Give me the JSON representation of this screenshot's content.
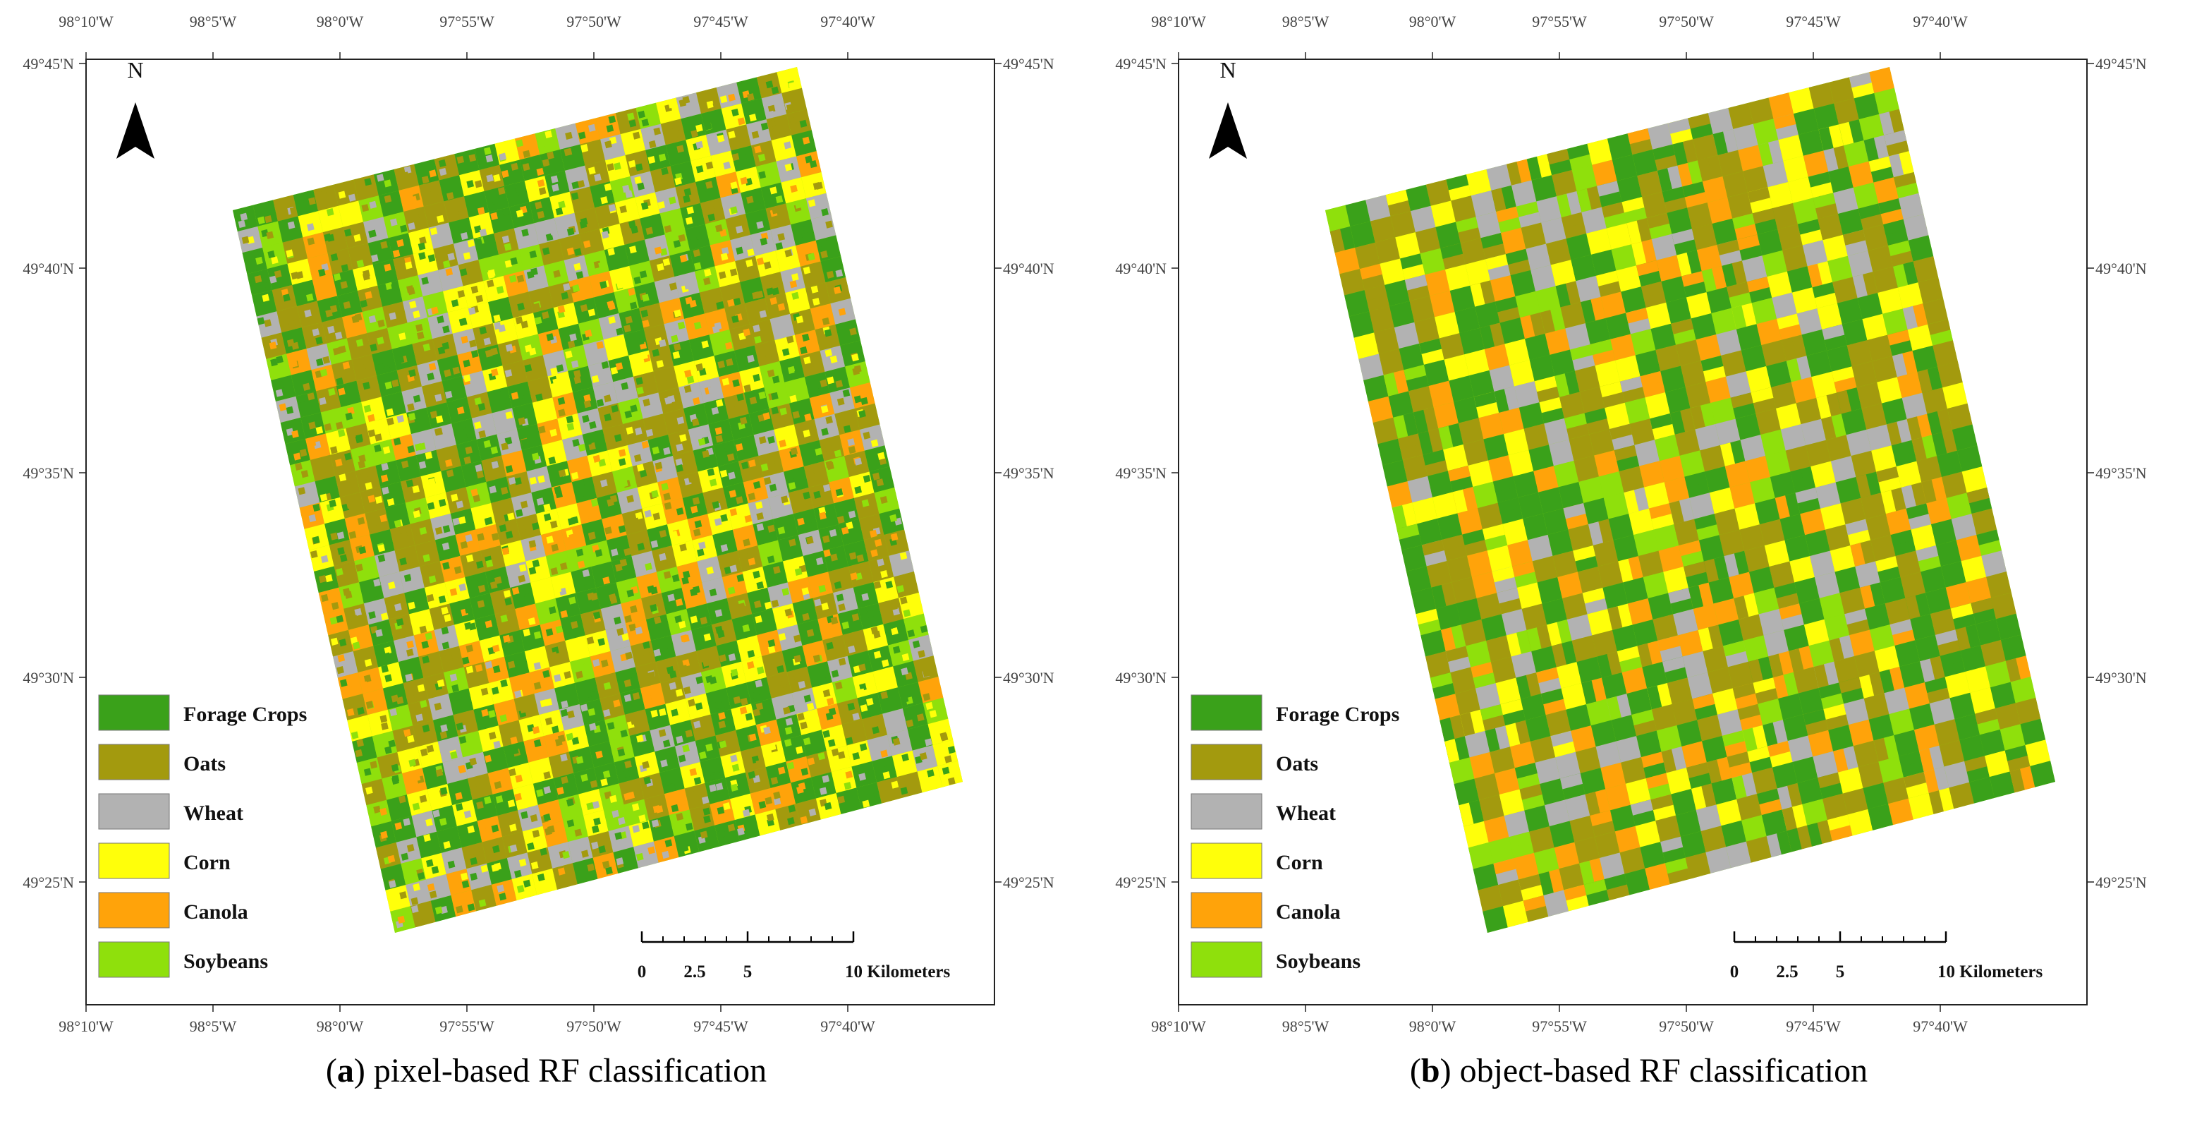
{
  "legend": [
    {
      "label": "Forage Crops",
      "color": "#3aa11a"
    },
    {
      "label": "Oats",
      "color": "#a39a0e"
    },
    {
      "label": "Wheat",
      "color": "#b2b2b2"
    },
    {
      "label": "Corn",
      "color": "#ffff0a"
    },
    {
      "label": "Canola",
      "color": "#ffa30a"
    },
    {
      "label": "Soybeans",
      "color": "#8fe00c"
    }
  ],
  "lon_top": [
    "98°10'W",
    "98°5'W",
    "98°0'W",
    "97°55'W",
    "97°50'W",
    "97°45'W",
    "97°40'W"
  ],
  "lon_bottom": [
    "98°10'W",
    "98°5'W",
    "98°0'W",
    "97°55'W",
    "97°50'W",
    "97°45'W",
    "97°40'W"
  ],
  "lat_left": [
    "49°45'N",
    "49°40'N",
    "49°35'N",
    "49°30'N",
    "49°25'N"
  ],
  "lat_right": [
    "49°45'N",
    "49°40'N",
    "49°35'N",
    "49°30'N",
    "49°25'N"
  ],
  "north_label": "N",
  "scale_ticks": [
    "0",
    "2.5",
    "5",
    "10 Kilometers"
  ],
  "panels": [
    {
      "id": "a",
      "caption_letter": "a",
      "caption_text": ") pixel-based RF classification",
      "style": "pixel"
    },
    {
      "id": "b",
      "caption_letter": "b",
      "caption_text": ") object-based RF classification",
      "style": "object"
    }
  ]
}
